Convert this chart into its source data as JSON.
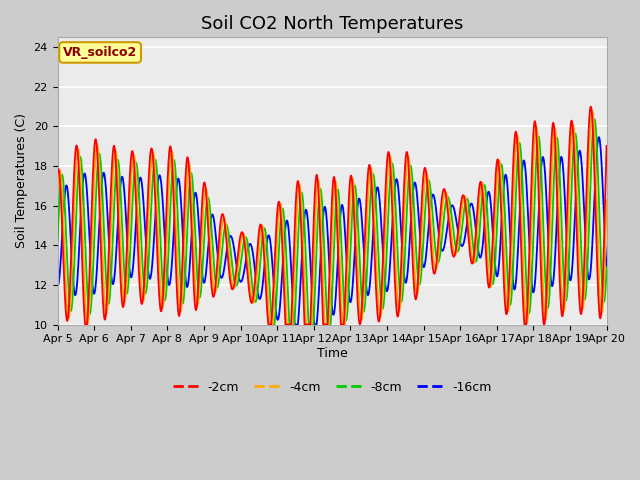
{
  "title": "Soil CO2 North Temperatures",
  "xlabel": "Time",
  "ylabel": "Soil Temperatures (C)",
  "ylim": [
    10,
    24.5
  ],
  "xlim": [
    0,
    15
  ],
  "xtick_labels": [
    "Apr 5",
    "Apr 6",
    "Apr 7",
    "Apr 8",
    "Apr 9",
    "Apr 10",
    "Apr 11",
    "Apr 12",
    "Apr 13",
    "Apr 14",
    "Apr 15",
    "Apr 16",
    "Apr 17",
    "Apr 18",
    "Apr 19",
    "Apr 20"
  ],
  "ytick_values": [
    10,
    12,
    14,
    16,
    18,
    20,
    22,
    24
  ],
  "legend_labels": [
    "-2cm",
    "-4cm",
    "-8cm",
    "-16cm"
  ],
  "legend_colors": [
    "#ff0000",
    "#ffaa00",
    "#00cc00",
    "#0000ff"
  ],
  "annotation_text": "VR_soilco2",
  "annotation_bg": "#ffff99",
  "annotation_border": "#cc9900",
  "plot_bg_light": "#f0f0f0",
  "plot_bg_dark": "#e0e0e0",
  "fig_bg": "#d8d8d8",
  "title_fontsize": 13,
  "axis_fontsize": 9,
  "tick_fontsize": 8,
  "legend_fontsize": 9
}
